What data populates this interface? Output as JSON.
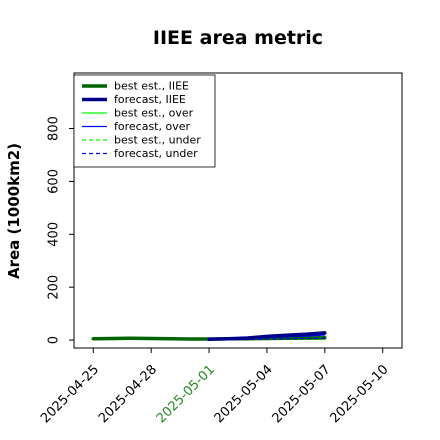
{
  "chart_data": {
    "type": "line",
    "title": "IIEE area metric",
    "xlabel": "",
    "ylabel": "Area (1000km2)",
    "x": [
      "2025-04-25",
      "2025-04-26",
      "2025-04-27",
      "2025-04-28",
      "2025-04-29",
      "2025-04-30",
      "2025-05-01",
      "2025-05-02",
      "2025-05-03",
      "2025-05-04",
      "2025-05-05",
      "2025-05-06",
      "2025-05-07"
    ],
    "xlim": [
      "2025-04-24",
      "2025-05-11"
    ],
    "ylim": [
      -30,
      1010
    ],
    "x_ticks": [
      "2025-04-25",
      "2025-04-28",
      "2025-05-01",
      "2025-05-04",
      "2025-05-07",
      "2025-05-10"
    ],
    "x_tick_colors": [
      "#000000",
      "#000000",
      "#228b22",
      "#000000",
      "#000000",
      "#000000"
    ],
    "y_ticks": [
      0,
      200,
      400,
      600,
      800
    ],
    "grid": false,
    "legend_position": "top-left",
    "series": [
      {
        "name": "best est., IIEE",
        "color": "#006400",
        "style": "solid",
        "width": 3.5,
        "values": [
          5,
          6,
          7,
          6,
          5,
          4,
          4,
          5,
          5,
          6,
          7,
          8,
          9
        ]
      },
      {
        "name": "forecast, IIEE",
        "color": "#00008b",
        "style": "solid",
        "width": 3.5,
        "values": [
          null,
          null,
          null,
          null,
          null,
          null,
          3,
          5,
          8,
          14,
          18,
          22,
          27
        ]
      },
      {
        "name": "best est., over",
        "color": "#00ff00",
        "style": "solid",
        "width": 1.2,
        "values": [
          2,
          2,
          3,
          3,
          2,
          2,
          2,
          2,
          3,
          3,
          3,
          3,
          3
        ]
      },
      {
        "name": "forecast, over",
        "color": "#0000ff",
        "style": "solid",
        "width": 1.2,
        "values": [
          null,
          null,
          null,
          null,
          null,
          null,
          2,
          3,
          5,
          9,
          12,
          15,
          19
        ]
      },
      {
        "name": "best est., under",
        "color": "#00ff00",
        "style": "dashed",
        "width": 1.2,
        "values": [
          3,
          4,
          4,
          3,
          3,
          2,
          2,
          3,
          3,
          3,
          4,
          5,
          6
        ]
      },
      {
        "name": "forecast, under",
        "color": "#0000ff",
        "style": "dashed",
        "width": 1.2,
        "values": [
          null,
          null,
          null,
          null,
          null,
          null,
          1,
          2,
          3,
          4,
          5,
          6,
          7
        ]
      }
    ]
  }
}
